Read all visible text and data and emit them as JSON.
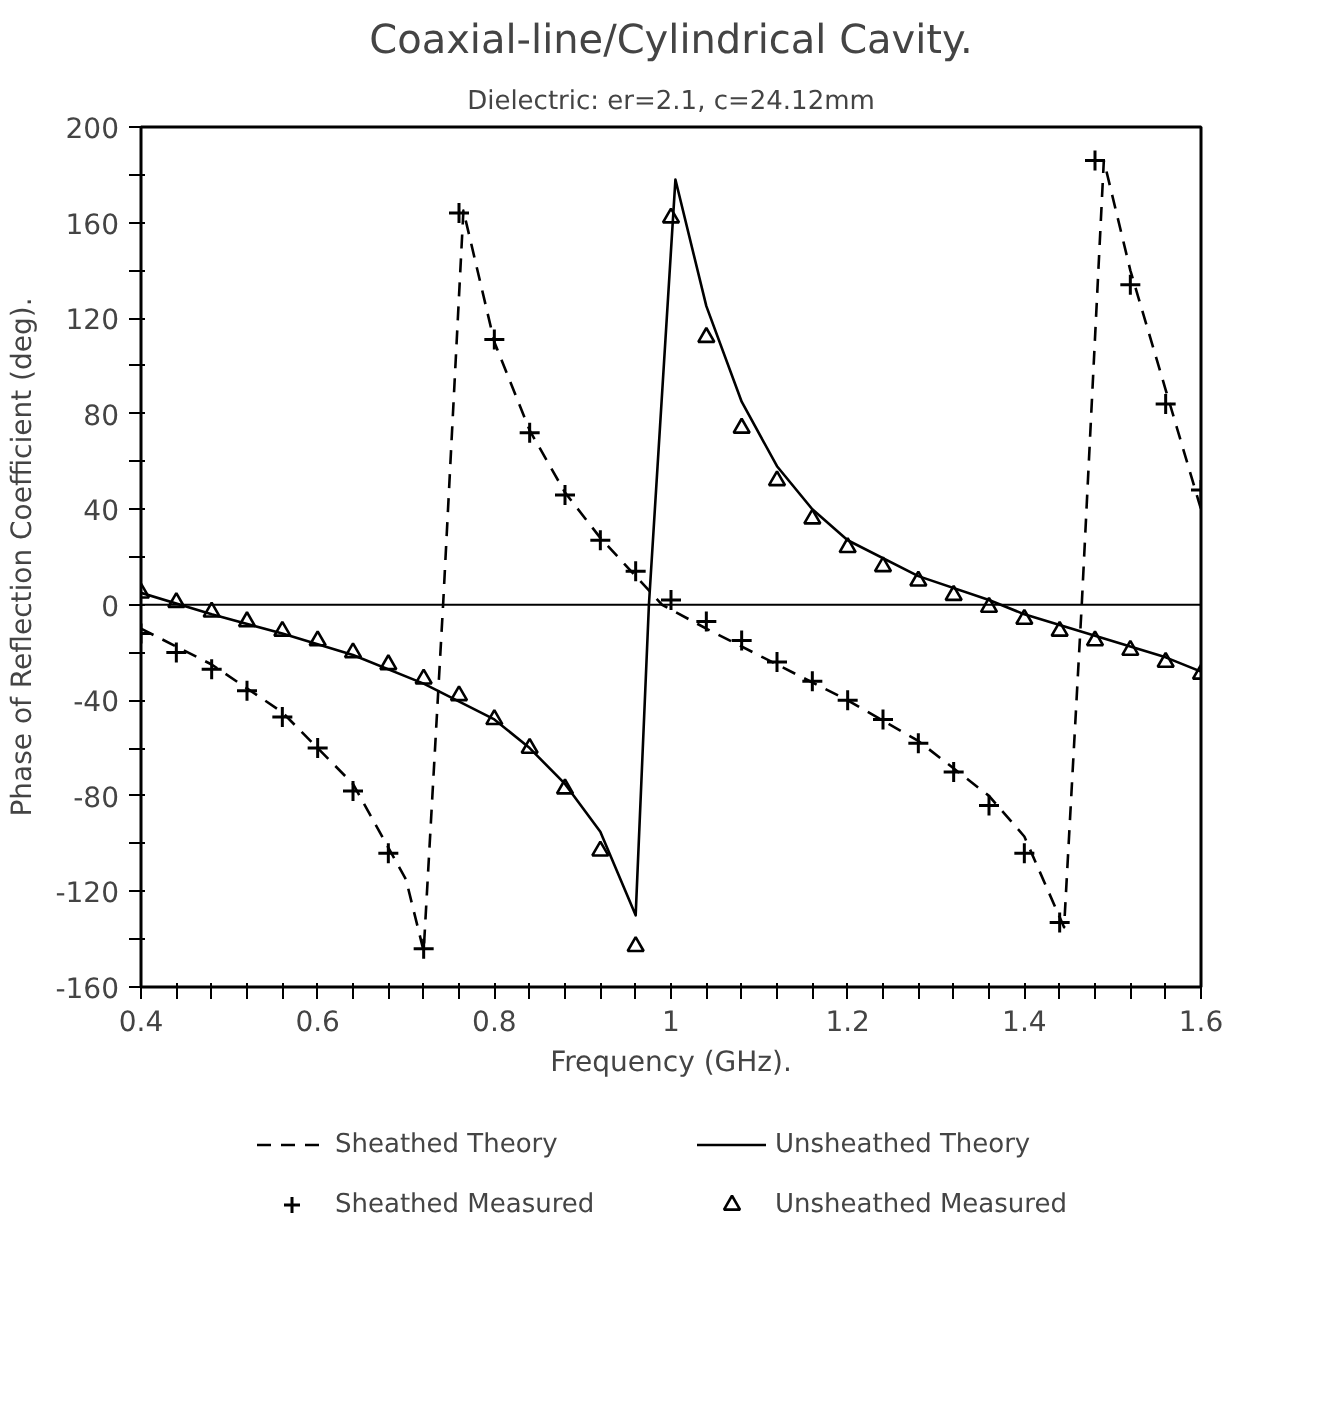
{
  "chart_data": {
    "type": "line",
    "title": "Coaxial-line/Cylindrical Cavity.",
    "subtitle": "Dielectric: er=2.1, c=24.12mm",
    "xlabel": "Frequency (GHz).",
    "ylabel": "Phase of Reflection Coefficient (deg).",
    "xlim": [
      0.4,
      1.6
    ],
    "ylim": [
      -160,
      200
    ],
    "xticks": [
      0.4,
      {
        "value": 0.44,
        "label": null
      },
      {
        "value": 0.48,
        "label": null
      },
      {
        "value": 0.52,
        "label": null
      },
      {
        "value": 0.56,
        "label": null
      },
      0.6,
      {
        "value": 0.64,
        "label": null
      },
      {
        "value": 0.68,
        "label": null
      },
      {
        "value": 0.72,
        "label": null
      },
      {
        "value": 0.76,
        "label": null
      },
      0.8,
      {
        "value": 0.84,
        "label": null
      },
      {
        "value": 0.88,
        "label": null
      },
      {
        "value": 0.92,
        "label": null
      },
      {
        "value": 0.96,
        "label": null
      },
      1,
      {
        "value": 1.04,
        "label": null
      },
      {
        "value": 1.08,
        "label": null
      },
      {
        "value": 1.12,
        "label": null
      },
      {
        "value": 1.16,
        "label": null
      },
      1.2,
      {
        "value": 1.24,
        "label": null
      },
      {
        "value": 1.28,
        "label": null
      },
      {
        "value": 1.32,
        "label": null
      },
      {
        "value": 1.36,
        "label": null
      },
      1.4,
      {
        "value": 1.44,
        "label": null
      },
      {
        "value": 1.48,
        "label": null
      },
      {
        "value": 1.52,
        "label": null
      },
      {
        "value": 1.56,
        "label": null
      },
      1.6
    ],
    "yticks": [
      -160,
      {
        "value": -140,
        "label": null
      },
      -120,
      {
        "value": -100,
        "label": null
      },
      -80,
      {
        "value": -60,
        "label": null
      },
      -40,
      {
        "value": -20,
        "label": null
      },
      0,
      {
        "value": 20,
        "label": null
      },
      40,
      {
        "value": 60,
        "label": null
      },
      80,
      {
        "value": 100,
        "label": null
      },
      120,
      {
        "value": 140,
        "label": null
      },
      160,
      {
        "value": 180,
        "label": null
      },
      200
    ],
    "ref_lines": [
      {
        "axis": "y",
        "value": 0,
        "color": "#000000"
      }
    ],
    "grid": false,
    "legend": "bottom",
    "series": [
      {
        "name": "Sheathed Theory",
        "line_style": "dashed",
        "color": "#000000",
        "x": [
          0.4,
          0.48,
          0.56,
          0.64,
          0.7,
          0.72,
          0.742,
          0.765,
          0.8,
          0.84,
          0.88,
          0.92,
          0.96,
          0.99,
          1.04,
          1.12,
          1.2,
          1.28,
          1.36,
          1.4,
          1.445,
          1.465,
          1.49,
          1.52,
          1.56,
          1.6
        ],
        "values": [
          -10,
          -25,
          -45,
          -75,
          -115,
          -145,
          0,
          165,
          110,
          73,
          47,
          28,
          12,
          0,
          -10,
          -25,
          -40,
          -57,
          -80,
          -97,
          -135,
          0,
          186,
          140,
          90,
          40
        ]
      },
      {
        "name": "Unsheathed Theory",
        "line_style": "solid",
        "color": "#000000",
        "x": [
          0.4,
          0.48,
          0.56,
          0.64,
          0.72,
          0.8,
          0.84,
          0.88,
          0.92,
          0.96,
          0.975,
          1.005,
          1.04,
          1.08,
          1.12,
          1.16,
          1.2,
          1.28,
          1.36,
          1.4,
          1.48,
          1.56,
          1.6
        ],
        "values": [
          5,
          -4,
          -12,
          -21,
          -33,
          -48,
          -60,
          -75,
          -95,
          -130,
          0,
          178,
          125,
          85,
          58,
          40,
          27,
          12,
          2,
          -4,
          -13,
          -22,
          -28
        ]
      },
      {
        "name": "Sheathed Measured",
        "type": "scatter",
        "marker": "cross",
        "color": "#000000",
        "x": [
          0.4,
          0.44,
          0.48,
          0.52,
          0.56,
          0.6,
          0.64,
          0.68,
          0.72,
          0.76,
          0.8,
          0.84,
          0.88,
          0.92,
          0.96,
          1.0,
          1.04,
          1.08,
          1.12,
          1.16,
          1.2,
          1.24,
          1.28,
          1.32,
          1.36,
          1.4,
          1.44,
          1.48,
          1.52,
          1.56,
          1.6
        ],
        "values": [
          -12,
          -20,
          -27,
          -36,
          -47,
          -60,
          -78,
          -104,
          -144,
          164,
          111,
          72,
          46,
          27,
          14,
          2,
          -7,
          -15,
          -24,
          -32,
          -40,
          -48,
          -58,
          -70,
          -84,
          -104,
          -133,
          186,
          134,
          84,
          48
        ]
      },
      {
        "name": "Unsheathed Measured",
        "type": "scatter",
        "marker": "triangle",
        "color": "#000000",
        "x": [
          0.4,
          0.44,
          0.48,
          0.52,
          0.56,
          0.6,
          0.64,
          0.68,
          0.72,
          0.76,
          0.8,
          0.84,
          0.88,
          0.92,
          0.96,
          1.0,
          1.04,
          1.08,
          1.12,
          1.16,
          1.2,
          1.24,
          1.28,
          1.32,
          1.36,
          1.4,
          1.44,
          1.48,
          1.52,
          1.56,
          1.6
        ],
        "values": [
          5,
          1,
          -3,
          -7,
          -11,
          -15,
          -20,
          -25,
          -31,
          -38,
          -48,
          -60,
          -77,
          -103,
          -143,
          162,
          112,
          74,
          52,
          36,
          24,
          16,
          10,
          4,
          -1,
          -6,
          -11,
          -15,
          -19,
          -24,
          -29
        ]
      }
    ]
  }
}
